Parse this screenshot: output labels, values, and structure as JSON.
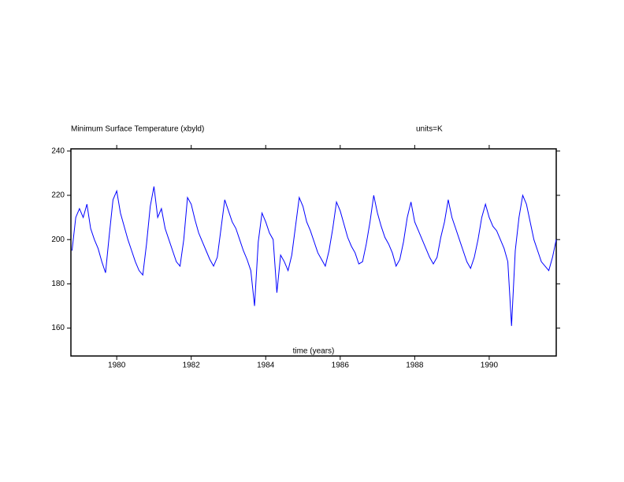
{
  "chart_data": {
    "type": "line",
    "title": "Minimum Surface Temperature (xbyld)",
    "subtitle": "units=K",
    "xlabel": "time (years)",
    "xlim": [
      1978.77,
      1991.8
    ],
    "ylim": [
      147.4,
      241
    ],
    "xticks": [
      1980,
      1982,
      1984,
      1986,
      1988,
      1990
    ],
    "yticks": [
      160,
      180,
      200,
      220,
      240
    ],
    "x": [
      1978.8,
      1978.9,
      1979.0,
      1979.1,
      1979.2,
      1979.3,
      1979.4,
      1979.5,
      1979.6,
      1979.7,
      1979.8,
      1979.9,
      1980.0,
      1980.1,
      1980.2,
      1980.3,
      1980.4,
      1980.5,
      1980.6,
      1980.7,
      1980.8,
      1980.9,
      1981.0,
      1981.1,
      1981.2,
      1981.3,
      1981.4,
      1981.5,
      1981.6,
      1981.7,
      1981.8,
      1981.9,
      1982.0,
      1982.1,
      1982.2,
      1982.3,
      1982.4,
      1982.5,
      1982.6,
      1982.7,
      1982.8,
      1982.9,
      1983.0,
      1983.1,
      1983.2,
      1983.3,
      1983.4,
      1983.5,
      1983.6,
      1983.7,
      1983.8,
      1983.9,
      1984.0,
      1984.1,
      1984.2,
      1984.3,
      1984.4,
      1984.5,
      1984.6,
      1984.7,
      1984.8,
      1984.9,
      1985.0,
      1985.1,
      1985.2,
      1985.3,
      1985.4,
      1985.5,
      1985.6,
      1985.7,
      1985.8,
      1985.9,
      1986.0,
      1986.1,
      1986.2,
      1986.3,
      1986.4,
      1986.5,
      1986.6,
      1986.7,
      1986.8,
      1986.9,
      1987.0,
      1987.1,
      1987.2,
      1987.3,
      1987.4,
      1987.5,
      1987.6,
      1987.7,
      1987.8,
      1987.9,
      1988.0,
      1988.1,
      1988.2,
      1988.3,
      1988.4,
      1988.5,
      1988.6,
      1988.7,
      1988.8,
      1988.9,
      1989.0,
      1989.1,
      1989.2,
      1989.3,
      1989.4,
      1989.5,
      1989.6,
      1989.7,
      1989.8,
      1989.9,
      1990.0,
      1990.1,
      1990.2,
      1990.3,
      1990.4,
      1990.5,
      1990.6,
      1990.7,
      1990.8,
      1990.9,
      1991.0,
      1991.1,
      1991.2,
      1991.3,
      1991.4,
      1991.5,
      1991.6,
      1991.7,
      1991.8
    ],
    "series": [
      {
        "name": "Minimum Surface Temperature",
        "color": "#0000ff",
        "values": [
          195,
          210,
          214,
          210,
          216,
          205,
          200,
          196,
          190,
          185,
          202,
          218,
          222,
          212,
          206,
          200,
          195,
          190,
          186,
          184,
          198,
          215,
          224,
          210,
          214,
          205,
          200,
          195,
          190,
          188,
          200,
          219,
          216,
          209,
          203,
          199,
          195,
          191,
          188,
          192,
          205,
          218,
          213,
          208,
          205,
          200,
          195,
          191,
          186,
          170,
          199,
          212,
          208,
          203,
          200,
          176,
          193,
          190,
          186,
          193,
          206,
          219,
          215,
          208,
          204,
          199,
          194,
          191,
          188,
          195,
          205,
          217,
          213,
          207,
          201,
          197,
          194,
          189,
          190,
          198,
          208,
          220,
          212,
          206,
          201,
          198,
          194,
          188,
          191,
          199,
          210,
          217,
          208,
          204,
          200,
          196,
          192,
          189,
          192,
          201,
          208,
          218,
          210,
          205,
          200,
          195,
          190,
          187,
          192,
          200,
          210,
          216,
          210,
          206,
          204,
          200,
          196,
          190,
          161,
          195,
          210,
          220,
          216,
          208,
          200,
          195,
          190,
          188,
          186,
          192,
          200
        ]
      }
    ]
  }
}
